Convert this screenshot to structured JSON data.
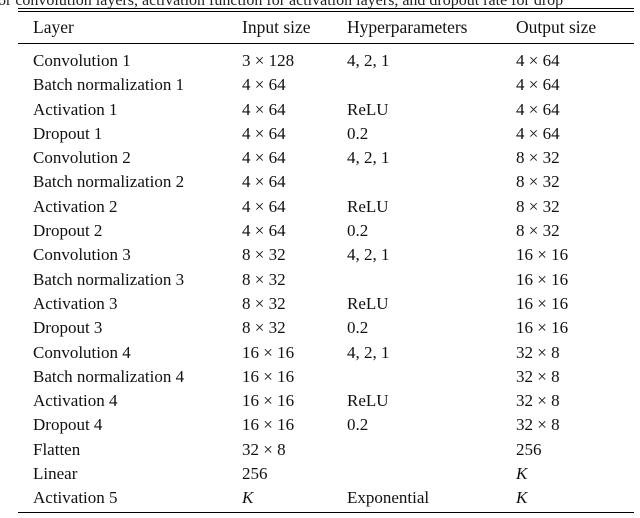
{
  "caption_fragment": "or convolution layers, activation function for activation layers, and dropout rate for drop",
  "table": {
    "columns": [
      "Layer",
      "Input size",
      "Hyperparameters",
      "Output size"
    ],
    "rows": [
      [
        "Convolution 1",
        "3 × 128",
        "4, 2, 1",
        "4 × 64"
      ],
      [
        "Batch normalization 1",
        "4 × 64",
        "",
        "4 × 64"
      ],
      [
        "Activation 1",
        "4 × 64",
        "ReLU",
        "4 × 64"
      ],
      [
        "Dropout 1",
        "4 × 64",
        "0.2",
        "4 × 64"
      ],
      [
        "Convolution 2",
        "4 × 64",
        "4, 2, 1",
        "8 × 32"
      ],
      [
        "Batch normalization 2",
        "4 × 64",
        "",
        "8 × 32"
      ],
      [
        "Activation 2",
        "4 × 64",
        "ReLU",
        "8 × 32"
      ],
      [
        "Dropout 2",
        "4 × 64",
        "0.2",
        "8 × 32"
      ],
      [
        "Convolution 3",
        "8 × 32",
        "4, 2, 1",
        "16 × 16"
      ],
      [
        "Batch normalization 3",
        "8 × 32",
        "",
        "16 × 16"
      ],
      [
        "Activation 3",
        "8 × 32",
        "ReLU",
        "16 × 16"
      ],
      [
        "Dropout 3",
        "8 × 32",
        "0.2",
        "16 × 16"
      ],
      [
        "Convolution 4",
        "16 × 16",
        "4, 2, 1",
        "32 × 8"
      ],
      [
        "Batch normalization 4",
        "16 × 16",
        "",
        "32 × 8"
      ],
      [
        "Activation 4",
        "16 × 16",
        "ReLU",
        "32 × 8"
      ],
      [
        "Dropout 4",
        "16 × 16",
        "0.2",
        "32 × 8"
      ],
      [
        "Flatten",
        "32 × 8",
        "",
        "256"
      ],
      [
        "Linear",
        "256",
        "",
        "K"
      ],
      [
        "Activation 5",
        "K",
        "Exponential",
        "K"
      ]
    ],
    "italic_values": [
      "K"
    ]
  },
  "colors": {
    "text": "#111111",
    "rule": "#000000",
    "background": "#ffffff"
  }
}
